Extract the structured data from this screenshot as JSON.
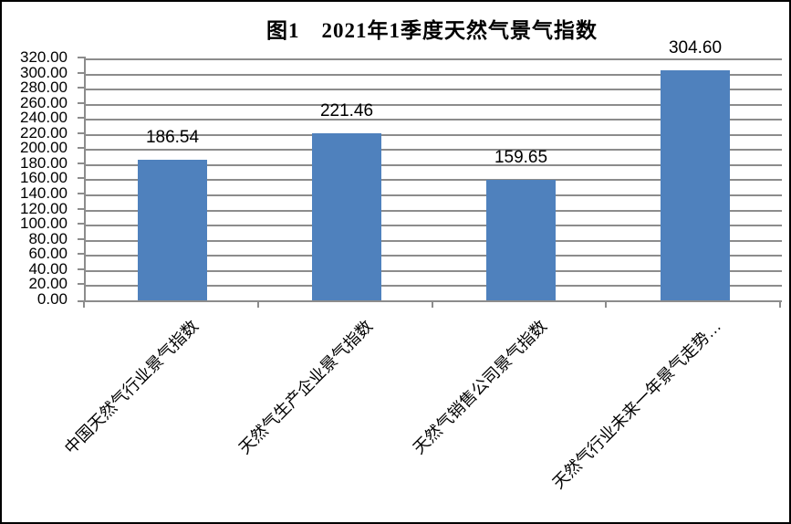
{
  "figure": {
    "title": "图1　2021年1季度天然气景气指数"
  },
  "chart_data": {
    "type": "bar",
    "title": "图1　2021年1季度天然气景气指数",
    "categories": [
      "中国天然气行业景气指数",
      "天然气生产企业景气指数",
      "天然气销售公司景气指数",
      "天然气行业未来一年景气走势…"
    ],
    "values": [
      186.54,
      221.46,
      159.65,
      304.6
    ],
    "data_labels": [
      "186.54",
      "221.46",
      "159.65",
      "304.60"
    ],
    "xlabel": "",
    "ylabel": "",
    "ylim": [
      0,
      320
    ],
    "ytick_step": 20,
    "ytick_labels": [
      "0.00",
      "20.00",
      "40.00",
      "60.00",
      "80.00",
      "100.00",
      "120.00",
      "140.00",
      "160.00",
      "180.00",
      "200.00",
      "220.00",
      "240.00",
      "260.00",
      "280.00",
      "300.00",
      "320.00"
    ],
    "grid": true,
    "legend": "none",
    "bar_color": "#4f81bd",
    "grid_color": "#8c8c8c",
    "text_color": "#000000"
  }
}
